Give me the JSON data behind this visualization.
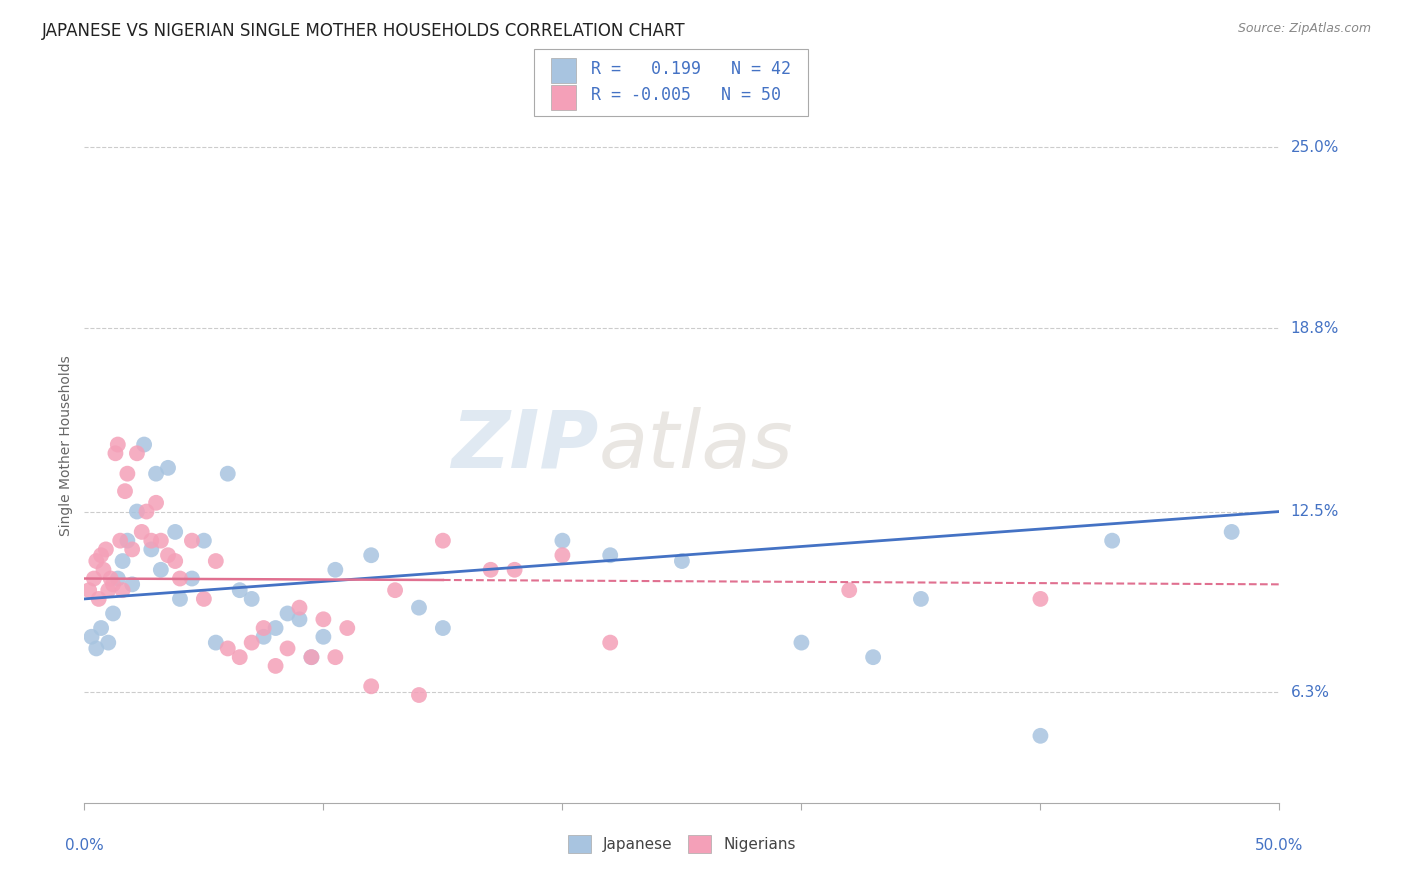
{
  "title": "JAPANESE VS NIGERIAN SINGLE MOTHER HOUSEHOLDS CORRELATION CHART",
  "source": "Source: ZipAtlas.com",
  "ylabel": "Single Mother Households",
  "ytick_labels": [
    "6.3%",
    "12.5%",
    "18.8%",
    "25.0%"
  ],
  "ytick_values": [
    6.3,
    12.5,
    18.8,
    25.0
  ],
  "xlim": [
    0.0,
    50.0
  ],
  "ylim": [
    2.5,
    27.0
  ],
  "legend_r_japanese": " 0.199",
  "legend_n_japanese": "42",
  "legend_r_nigerian": "-0.005",
  "legend_n_nigerian": "50",
  "japanese_color": "#a8c4e0",
  "nigerian_color": "#f4a0b8",
  "japanese_line_color": "#4472c4",
  "nigerian_line_color": "#e07090",
  "watermark_zip": "ZIP",
  "watermark_atlas": "atlas",
  "japanese_points": [
    [
      0.3,
      8.2
    ],
    [
      0.5,
      7.8
    ],
    [
      0.7,
      8.5
    ],
    [
      1.0,
      8.0
    ],
    [
      1.2,
      9.0
    ],
    [
      1.4,
      10.2
    ],
    [
      1.6,
      10.8
    ],
    [
      1.8,
      11.5
    ],
    [
      2.0,
      10.0
    ],
    [
      2.2,
      12.5
    ],
    [
      2.5,
      14.8
    ],
    [
      2.8,
      11.2
    ],
    [
      3.0,
      13.8
    ],
    [
      3.2,
      10.5
    ],
    [
      3.5,
      14.0
    ],
    [
      3.8,
      11.8
    ],
    [
      4.0,
      9.5
    ],
    [
      4.5,
      10.2
    ],
    [
      5.0,
      11.5
    ],
    [
      5.5,
      8.0
    ],
    [
      6.0,
      13.8
    ],
    [
      6.5,
      9.8
    ],
    [
      7.0,
      9.5
    ],
    [
      7.5,
      8.2
    ],
    [
      8.0,
      8.5
    ],
    [
      8.5,
      9.0
    ],
    [
      9.0,
      8.8
    ],
    [
      9.5,
      7.5
    ],
    [
      10.0,
      8.2
    ],
    [
      10.5,
      10.5
    ],
    [
      12.0,
      11.0
    ],
    [
      14.0,
      9.2
    ],
    [
      15.0,
      8.5
    ],
    [
      20.0,
      11.5
    ],
    [
      22.0,
      11.0
    ],
    [
      25.0,
      10.8
    ],
    [
      30.0,
      8.0
    ],
    [
      33.0,
      7.5
    ],
    [
      35.0,
      9.5
    ],
    [
      40.0,
      4.8
    ],
    [
      43.0,
      11.5
    ],
    [
      48.0,
      11.8
    ]
  ],
  "nigerian_points": [
    [
      0.2,
      9.8
    ],
    [
      0.4,
      10.2
    ],
    [
      0.5,
      10.8
    ],
    [
      0.6,
      9.5
    ],
    [
      0.7,
      11.0
    ],
    [
      0.8,
      10.5
    ],
    [
      0.9,
      11.2
    ],
    [
      1.0,
      9.8
    ],
    [
      1.1,
      10.2
    ],
    [
      1.2,
      10.0
    ],
    [
      1.3,
      14.5
    ],
    [
      1.4,
      14.8
    ],
    [
      1.5,
      11.5
    ],
    [
      1.6,
      9.8
    ],
    [
      1.7,
      13.2
    ],
    [
      1.8,
      13.8
    ],
    [
      2.0,
      11.2
    ],
    [
      2.2,
      14.5
    ],
    [
      2.4,
      11.8
    ],
    [
      2.6,
      12.5
    ],
    [
      2.8,
      11.5
    ],
    [
      3.0,
      12.8
    ],
    [
      3.2,
      11.5
    ],
    [
      3.5,
      11.0
    ],
    [
      3.8,
      10.8
    ],
    [
      4.0,
      10.2
    ],
    [
      4.5,
      11.5
    ],
    [
      5.0,
      9.5
    ],
    [
      5.5,
      10.8
    ],
    [
      6.0,
      7.8
    ],
    [
      6.5,
      7.5
    ],
    [
      7.0,
      8.0
    ],
    [
      7.5,
      8.5
    ],
    [
      8.0,
      7.2
    ],
    [
      8.5,
      7.8
    ],
    [
      9.0,
      9.2
    ],
    [
      9.5,
      7.5
    ],
    [
      10.0,
      8.8
    ],
    [
      10.5,
      7.5
    ],
    [
      11.0,
      8.5
    ],
    [
      12.0,
      6.5
    ],
    [
      13.0,
      9.8
    ],
    [
      14.0,
      6.2
    ],
    [
      15.0,
      11.5
    ],
    [
      17.0,
      10.5
    ],
    [
      18.0,
      10.5
    ],
    [
      20.0,
      11.0
    ],
    [
      22.0,
      8.0
    ],
    [
      32.0,
      9.8
    ],
    [
      40.0,
      9.5
    ]
  ],
  "background_color": "#ffffff",
  "grid_color": "#cccccc",
  "title_fontsize": 12,
  "axis_fontsize": 10,
  "tick_fontsize": 11
}
